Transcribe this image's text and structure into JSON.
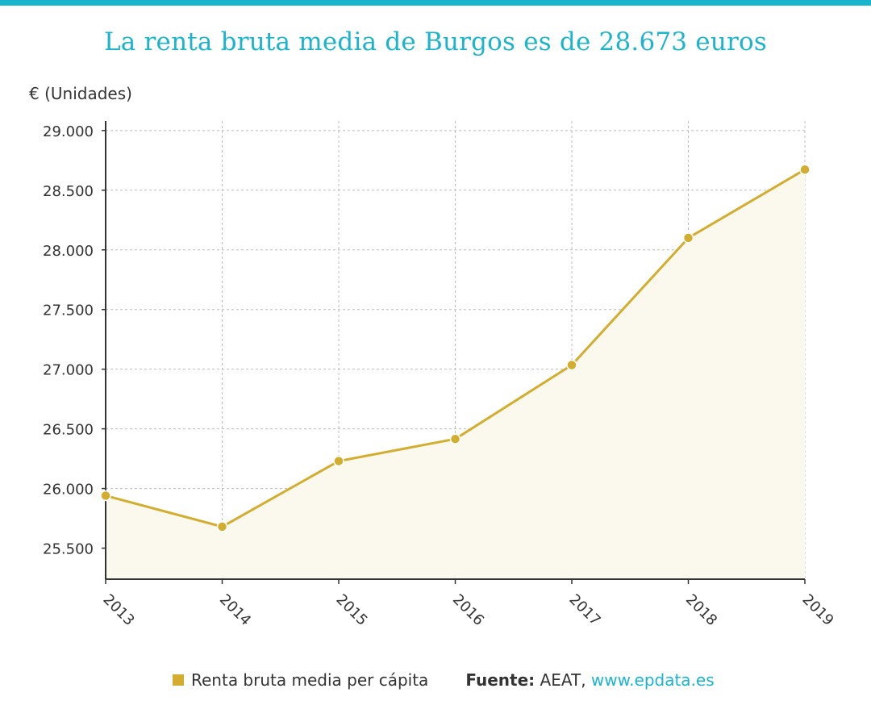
{
  "colors": {
    "accent": "#1ab4cc",
    "series": "#d4ad2e",
    "area_fill": "#fbf8ee",
    "grid": "#bcbcbc",
    "axis": "#333333",
    "text": "#333333"
  },
  "legend": {
    "series_label": "Renta bruta media per cápita",
    "source_label": "Fuente:",
    "source_text": " AEAT, ",
    "source_link": "www.epdata.es"
  },
  "chart_data": {
    "type": "area",
    "title": "La renta bruta media de Burgos es de 28.673 euros",
    "ylabel": "€ (Unidades)",
    "xlabel": "",
    "ylim": [
      25240,
      29080
    ],
    "yticks": [
      25500,
      26000,
      26500,
      27000,
      27500,
      28000,
      28500,
      29000
    ],
    "ytick_labels": [
      "25.500",
      "26.000",
      "26.500",
      "27.000",
      "27.500",
      "28.000",
      "28.500",
      "29.000"
    ],
    "grid": true,
    "legend_position": "bottom",
    "categories": [
      "2013",
      "2014",
      "2015",
      "2016",
      "2017",
      "2018",
      "2019"
    ],
    "series": [
      {
        "name": "Renta bruta media per cápita",
        "values": [
          25940,
          25680,
          26230,
          26415,
          27035,
          28100,
          28673
        ]
      }
    ]
  }
}
